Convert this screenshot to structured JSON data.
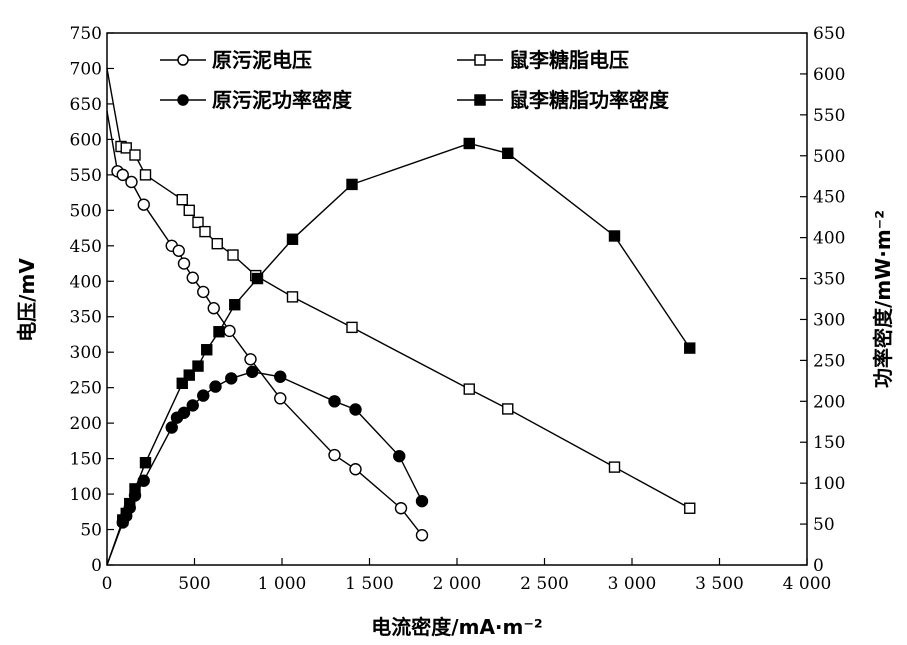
{
  "chart_data": {
    "type": "line",
    "xlabel": "电流密度/mA·m⁻²",
    "ylabel_left": "电压/mV",
    "ylabel_right": "功率密度/mW·m⁻²",
    "xlim": [
      0,
      4000
    ],
    "ylim_left": [
      0,
      750
    ],
    "ylim_right": [
      0,
      650
    ],
    "x_ticks": [
      0,
      500,
      1000,
      1500,
      2000,
      2500,
      3000,
      3500,
      4000
    ],
    "x_tick_labels": [
      "0",
      "500",
      "1 000",
      "1 500",
      "2 000",
      "2 500",
      "3 000",
      "3 500",
      "4 000"
    ],
    "y_left_ticks": [
      0,
      50,
      100,
      150,
      200,
      250,
      300,
      350,
      400,
      450,
      500,
      550,
      600,
      650,
      700,
      750
    ],
    "y_right_ticks": [
      0,
      50,
      100,
      150,
      200,
      250,
      300,
      350,
      400,
      450,
      500,
      550,
      600,
      650
    ],
    "grid": false,
    "legend_position": "top",
    "series": [
      {
        "name": "原污泥电压",
        "axis": "left",
        "marker": "open-circle",
        "points": [
          [
            0,
            640
          ],
          [
            60,
            555
          ],
          [
            90,
            550
          ],
          [
            140,
            540
          ],
          [
            210,
            508
          ],
          [
            370,
            450
          ],
          [
            410,
            443
          ],
          [
            440,
            425
          ],
          [
            490,
            405
          ],
          [
            550,
            385
          ],
          [
            610,
            362
          ],
          [
            700,
            330
          ],
          [
            820,
            290
          ],
          [
            990,
            235
          ],
          [
            1300,
            155
          ],
          [
            1420,
            135
          ],
          [
            1680,
            80
          ],
          [
            1800,
            42
          ]
        ]
      },
      {
        "name": "鼠李糖脂电压",
        "axis": "left",
        "marker": "open-square",
        "points": [
          [
            0,
            700
          ],
          [
            80,
            590
          ],
          [
            110,
            588
          ],
          [
            160,
            578
          ],
          [
            220,
            550
          ],
          [
            430,
            515
          ],
          [
            470,
            500
          ],
          [
            520,
            483
          ],
          [
            560,
            470
          ],
          [
            630,
            453
          ],
          [
            720,
            437
          ],
          [
            850,
            408
          ],
          [
            1060,
            378
          ],
          [
            1400,
            335
          ],
          [
            2070,
            248
          ],
          [
            2290,
            220
          ],
          [
            2900,
            138
          ],
          [
            3330,
            80
          ]
        ]
      },
      {
        "name": "原污泥功率密度",
        "axis": "right",
        "marker": "filled-circle",
        "points": [
          [
            0,
            0
          ],
          [
            90,
            52
          ],
          [
            110,
            60
          ],
          [
            130,
            70
          ],
          [
            160,
            85
          ],
          [
            210,
            103
          ],
          [
            370,
            168
          ],
          [
            400,
            180
          ],
          [
            440,
            186
          ],
          [
            490,
            195
          ],
          [
            550,
            207
          ],
          [
            620,
            218
          ],
          [
            710,
            228
          ],
          [
            830,
            236
          ],
          [
            990,
            230
          ],
          [
            1300,
            200
          ],
          [
            1420,
            190
          ],
          [
            1670,
            133
          ],
          [
            1800,
            78
          ]
        ]
      },
      {
        "name": "鼠李糖脂功率密度",
        "axis": "right",
        "marker": "filled-square",
        "points": [
          [
            0,
            0
          ],
          [
            90,
            55
          ],
          [
            110,
            63
          ],
          [
            130,
            75
          ],
          [
            160,
            93
          ],
          [
            220,
            125
          ],
          [
            430,
            222
          ],
          [
            470,
            232
          ],
          [
            520,
            243
          ],
          [
            570,
            263
          ],
          [
            640,
            285
          ],
          [
            730,
            318
          ],
          [
            860,
            350
          ],
          [
            1060,
            398
          ],
          [
            1400,
            465
          ],
          [
            2070,
            515
          ],
          [
            2290,
            503
          ],
          [
            2900,
            402
          ],
          [
            3330,
            265
          ]
        ]
      }
    ]
  }
}
